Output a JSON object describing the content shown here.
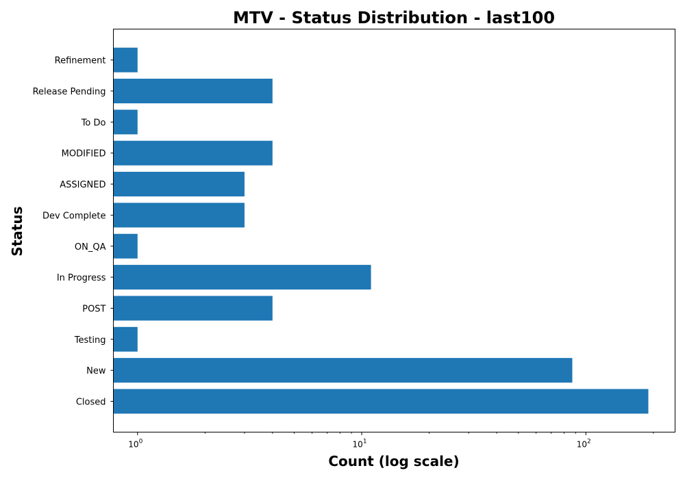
{
  "chart_data": {
    "type": "bar",
    "orientation": "horizontal",
    "title": "MTV - Status Distribution - last100",
    "xlabel": "Count (log scale)",
    "ylabel": "Status",
    "x_scale": "log",
    "xlim": [
      0.78,
      250
    ],
    "x_ticks": [
      {
        "value": 1,
        "base": "10",
        "exp": "0"
      },
      {
        "value": 10,
        "base": "10",
        "exp": "1"
      },
      {
        "value": 100,
        "base": "10",
        "exp": "2"
      }
    ],
    "bar_color": "#1f77b4",
    "grid": false,
    "categories": [
      "Closed",
      "New",
      "Testing",
      "POST",
      "In Progress",
      "ON_QA",
      "Dev Complete",
      "ASSIGNED",
      "MODIFIED",
      "To Do",
      "Release Pending",
      "Refinement"
    ],
    "values": [
      190,
      87,
      1,
      4,
      11,
      1,
      3,
      3,
      4,
      1,
      4,
      1
    ]
  }
}
